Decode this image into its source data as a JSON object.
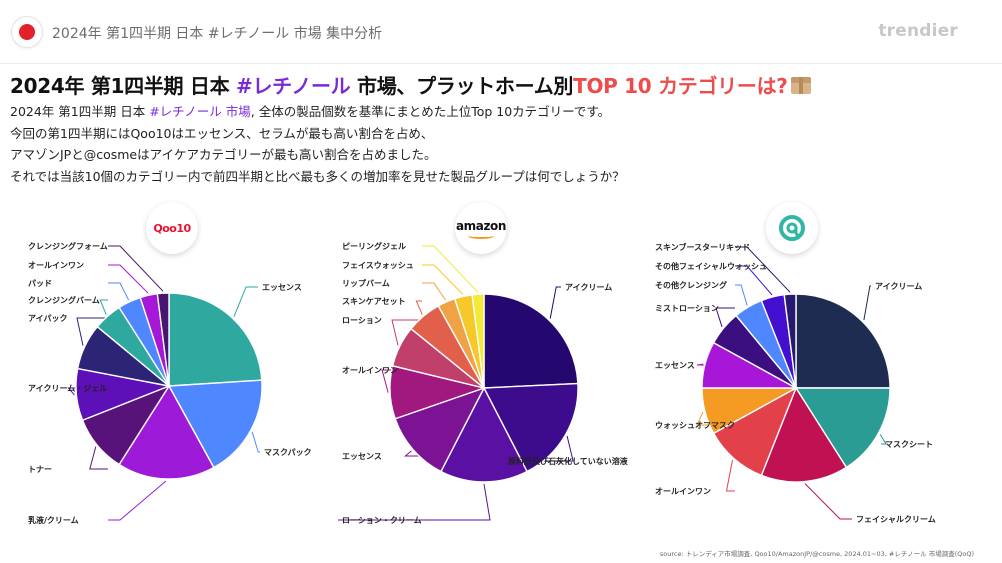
{
  "header": {
    "title": "2024年 第1四半期 日本 #レチノール 市場 集中分析",
    "brand": "trendier"
  },
  "headline": {
    "part1": "2024年 第1四半期 日本 ",
    "part2": "#レチノール",
    "part3": " 市場、プラットホーム別",
    "part4": "TOP 10 カテゴリーは?"
  },
  "description": {
    "line1_part1": "2024年 第1四半期 日本 ",
    "line1_part2": "#レチノール 市場",
    "line1_part3": ", 全体の製品個数を基準にまとめた上位Top 10カテゴリーです。",
    "line2": "今回の第1四半期にはQoo10はエッセンス、セラムが最も高い割合を占め、",
    "line3": "アマゾンJPと@cosmeはアイケアカテゴリーが最も高い割合を占めました。",
    "line4": "それでは当該10個のカテゴリー内で前四半期と比べ最も多くの増加率を見せた製品グループは何でしょうか？"
  },
  "logos": {
    "qoo10": "Qoo10",
    "amazon": "amazon"
  },
  "source": "source: トレンディア市場調査, Qoo10/AmazonJP/@cosme, 2024.01~03, #レチノール 市場調査(QoQ)",
  "chart_data": [
    {
      "type": "pie",
      "platform": "Qoo10",
      "categories": [
        "エッセンス",
        "マスクパック",
        "乳液/クリーム",
        "トナー",
        "アイクリーム・ジェル",
        "アイパック",
        "クレンジングバーム",
        "パッド",
        "オールインワン",
        "クレンジングフォーム"
      ],
      "values": [
        24,
        18,
        17,
        10,
        9,
        8,
        5,
        4,
        3,
        2
      ],
      "colors": [
        "#2fa9a0",
        "#4f87ff",
        "#9d1bd8",
        "#57137a",
        "#5d0fb8",
        "#2c2475",
        "#2fa9a0",
        "#4f87ff",
        "#a617d8",
        "#4a1570"
      ],
      "legend": "none"
    },
    {
      "type": "pie",
      "platform": "AmazonJP",
      "categories": [
        "アイクリーム",
        "原料肝及び石灰化していない溶液",
        "ローション・クリーム",
        "エッセンス",
        "オールインワン",
        "ローション",
        "スキンケアセット",
        "リップバーム",
        "フェイスウォッシュ",
        "ピーリングジェル"
      ],
      "values": [
        24,
        18,
        15,
        12,
        9,
        7,
        6,
        3,
        3,
        2
      ],
      "colors": [
        "#240870",
        "#3c0c8c",
        "#5a10a3",
        "#7b1394",
        "#a1197f",
        "#c13f6b",
        "#e0604c",
        "#f0a247",
        "#f6c82a",
        "#f2ea35"
      ],
      "legend": "none"
    },
    {
      "type": "pie",
      "platform": "@cosme",
      "categories": [
        "アイクリーム",
        "マスクシート",
        "フェイシャルクリーム",
        "オールインワン",
        "ウォッシュオフマスク",
        "エッセンス",
        "ミストローション",
        "その他クレンジング",
        "その他フェイシャルウォッシュ",
        "スキンブースターリキッド"
      ],
      "values": [
        25,
        16,
        15,
        11,
        8,
        8,
        6,
        5,
        4,
        2
      ],
      "colors": [
        "#1f2c52",
        "#2b9c94",
        "#c01153",
        "#e2414a",
        "#f59a23",
        "#a816d8",
        "#3b0f80",
        "#4f87ff",
        "#4310d0",
        "#251a6e"
      ],
      "legend": "none"
    }
  ]
}
